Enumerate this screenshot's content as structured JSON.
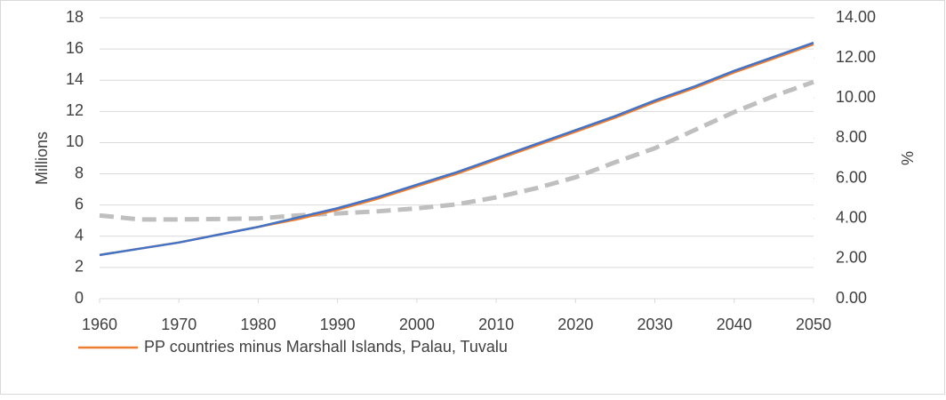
{
  "chart_data": {
    "type": "line",
    "y_label": "Millions",
    "y2_label": "%",
    "x": [
      1960,
      1965,
      1970,
      1975,
      1980,
      1985,
      1990,
      1995,
      2000,
      2005,
      2010,
      2015,
      2020,
      2025,
      2030,
      2035,
      2040,
      2045,
      2050
    ],
    "series": [
      {
        "name": "PP countries minus Marshall Islands, Palau, Tuvalu",
        "color": "#ed7d31",
        "values": [
          2.8,
          3.2,
          3.6,
          4.1,
          4.6,
          5.1,
          5.7,
          6.4,
          7.2,
          8.0,
          8.9,
          9.8,
          10.7,
          11.6,
          12.6,
          13.5,
          14.5,
          15.4,
          16.3
        ]
      },
      {
        "color": "#4472c4",
        "values": [
          2.8,
          3.2,
          3.6,
          4.1,
          4.6,
          5.2,
          5.8,
          6.5,
          7.3,
          8.1,
          9.0,
          9.9,
          10.8,
          11.7,
          12.7,
          13.6,
          14.6,
          15.5,
          16.4
        ]
      },
      {
        "color": "#bfbfbf",
        "axis": "y2",
        "dashed": true,
        "values": [
          4.15,
          3.95,
          3.95,
          3.97,
          4.0,
          4.15,
          4.25,
          4.35,
          4.5,
          4.7,
          5.05,
          5.5,
          6.05,
          6.8,
          7.5,
          8.4,
          9.3,
          10.1,
          10.8
        ]
      }
    ],
    "xlim": [
      1960,
      2050
    ],
    "xticks": [
      1960,
      1970,
      1980,
      1990,
      2000,
      2010,
      2020,
      2030,
      2040,
      2050
    ],
    "ylim": [
      0,
      18
    ],
    "yticks": [
      0,
      2,
      4,
      6,
      8,
      10,
      12,
      14,
      16,
      18
    ],
    "y2lim": [
      0,
      14
    ],
    "y2ticks": [
      {
        "value": 0,
        "label": "0.00"
      },
      {
        "value": 2,
        "label": "2.00"
      },
      {
        "value": 4,
        "label": "4.00"
      },
      {
        "value": 6,
        "label": "6.00"
      },
      {
        "value": 8,
        "label": "8.00"
      },
      {
        "value": 10,
        "label": "10.00"
      },
      {
        "value": 12,
        "label": "12.00"
      },
      {
        "value": 14,
        "label": "14.00"
      }
    ],
    "grid": true,
    "legend": "bottom-left"
  }
}
